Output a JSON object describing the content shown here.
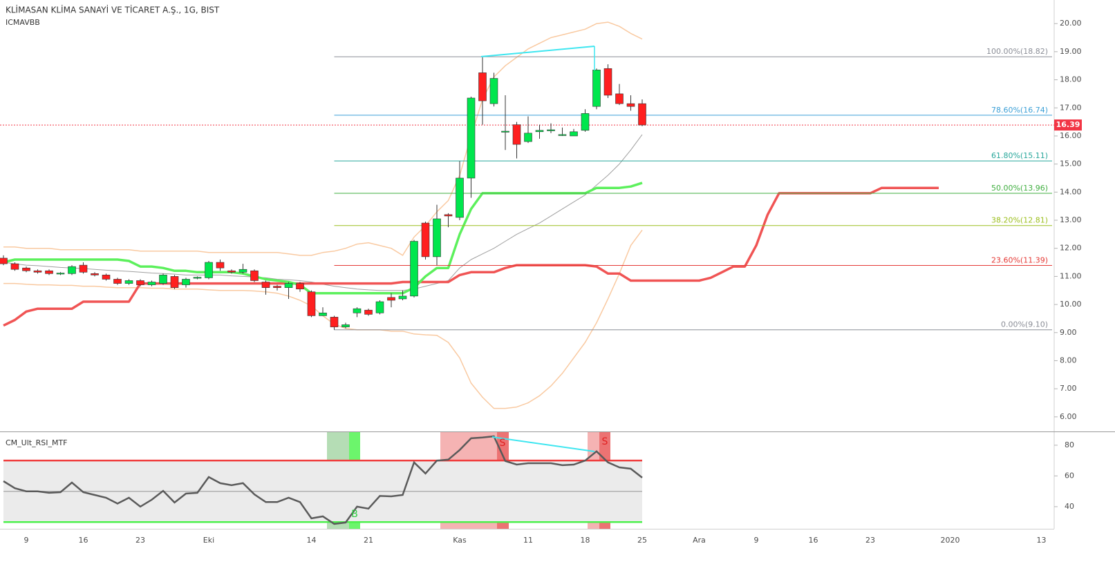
{
  "chart_data": {
    "type": "candlestick",
    "title": "KLİMASAN KLİMA SANAYİ VE TİCARET A.Ş., 1G, BIST",
    "subtitle": "ICMAVBB",
    "categories": [
      null,
      null,
      "9",
      null,
      null,
      null,
      null,
      "16",
      null,
      null,
      null,
      null,
      "23",
      null,
      null,
      null,
      null,
      null,
      "Eki",
      null,
      null,
      null,
      null,
      null,
      null,
      null,
      null,
      "14",
      null,
      null,
      null,
      null,
      "21",
      null,
      null,
      null,
      null,
      null,
      null,
      null,
      "Kas",
      null,
      null,
      null,
      null,
      null,
      "11",
      null,
      null,
      null,
      null,
      "18",
      null,
      null,
      null,
      null,
      "25",
      null,
      null,
      null,
      null,
      "Ara",
      null,
      null,
      null,
      null,
      "9",
      null,
      null,
      null,
      null,
      "16",
      null,
      null,
      null,
      null,
      "23",
      null,
      null,
      null,
      null,
      null,
      null,
      "2020",
      null,
      null,
      null,
      null,
      null,
      null,
      null,
      "13"
    ],
    "open": [
      11.65,
      11.45,
      11.3,
      11.2,
      11.2,
      11.1,
      11.1,
      11.4,
      11.1,
      11.05,
      10.9,
      10.75,
      10.85,
      10.7,
      10.75,
      11.0,
      10.7,
      10.95,
      10.95,
      11.5,
      11.2,
      11.15,
      11.2,
      10.8,
      10.65,
      10.6,
      10.75,
      10.45,
      9.6,
      9.55,
      9.2,
      9.7,
      9.8,
      9.7,
      10.25,
      10.2,
      10.3,
      12.9,
      11.7,
      13.2,
      13.1,
      14.5,
      18.25,
      17.15,
      16.15,
      16.4,
      15.8,
      16.15,
      16.2,
      16.05,
      16.0,
      16.2,
      17.05,
      18.4,
      17.5,
      17.15,
      17.15,
      null,
      null,
      null,
      null,
      null,
      null,
      null,
      null,
      null,
      null,
      null,
      null,
      null,
      null,
      null,
      null,
      null,
      null,
      null,
      null,
      null,
      null,
      null,
      null,
      null,
      null,
      null,
      null,
      null,
      null,
      null,
      null,
      null,
      null,
      null
    ],
    "high": [
      11.75,
      11.5,
      11.35,
      11.25,
      11.25,
      11.15,
      11.4,
      11.5,
      11.15,
      11.1,
      10.95,
      10.9,
      10.9,
      10.85,
      11.1,
      11.05,
      10.95,
      11.0,
      11.55,
      11.6,
      11.25,
      11.45,
      11.25,
      10.85,
      10.7,
      10.8,
      10.8,
      10.5,
      9.9,
      9.6,
      9.35,
      9.9,
      9.85,
      10.15,
      10.4,
      10.5,
      12.3,
      12.95,
      13.55,
      13.25,
      15.1,
      17.4,
      18.8,
      18.25,
      17.45,
      16.5,
      16.7,
      16.4,
      16.45,
      16.3,
      16.25,
      16.95,
      18.4,
      18.55,
      17.85,
      17.45,
      17.3,
      null,
      null,
      null,
      null,
      null,
      null,
      null,
      null,
      null,
      null,
      null,
      null,
      null,
      null,
      null,
      null,
      null,
      null,
      null,
      null,
      null,
      null,
      null,
      null,
      null,
      null,
      null,
      null,
      null,
      null,
      null,
      null,
      null,
      null,
      null
    ],
    "low": [
      11.4,
      11.2,
      11.15,
      11.1,
      11.05,
      11.05,
      11.05,
      11.1,
      11.0,
      10.85,
      10.7,
      10.7,
      10.65,
      10.65,
      10.7,
      10.55,
      10.6,
      10.9,
      10.9,
      11.2,
      11.1,
      11.1,
      10.8,
      10.35,
      10.5,
      10.2,
      10.45,
      9.55,
      9.6,
      9.1,
      9.15,
      9.55,
      9.6,
      9.65,
      9.9,
      10.15,
      10.25,
      11.6,
      11.4,
      12.75,
      13.0,
      13.8,
      16.4,
      17.05,
      15.5,
      15.2,
      15.75,
      15.9,
      16.1,
      16.0,
      16.0,
      16.15,
      16.95,
      17.35,
      17.1,
      16.9,
      16.35,
      null,
      null,
      null,
      null,
      null,
      null,
      null,
      null,
      null,
      null,
      null,
      null,
      null,
      null,
      null,
      null,
      null,
      null,
      null,
      null,
      null,
      null,
      null,
      null,
      null,
      null,
      null,
      null,
      null,
      null,
      null,
      null,
      null,
      null,
      null
    ],
    "close": [
      11.45,
      11.25,
      11.2,
      11.15,
      11.1,
      11.12,
      11.35,
      11.15,
      11.05,
      10.9,
      10.75,
      10.85,
      10.7,
      10.8,
      11.05,
      10.6,
      10.9,
      10.97,
      11.5,
      11.3,
      11.15,
      11.25,
      10.85,
      10.6,
      10.6,
      10.75,
      10.55,
      9.6,
      9.7,
      9.2,
      9.28,
      9.85,
      9.65,
      10.1,
      10.15,
      10.3,
      12.25,
      11.7,
      13.05,
      13.15,
      14.5,
      17.35,
      17.25,
      18.05,
      16.17,
      15.7,
      16.1,
      16.2,
      16.22,
      16.05,
      16.15,
      16.8,
      18.35,
      17.45,
      17.15,
      17.05,
      16.39,
      null,
      null,
      null,
      null,
      null,
      null,
      null,
      null,
      null,
      null,
      null,
      null,
      null,
      null,
      null,
      null,
      null,
      null,
      null,
      null,
      null,
      null,
      null,
      null,
      null,
      null,
      null,
      null,
      null,
      null,
      null,
      null,
      null,
      null,
      null
    ],
    "up_color": "#00e64d",
    "down_color": "#ff1f1f",
    "ylim": [
      5.48,
      20.84
    ],
    "yticks": [
      {
        "value": 6,
        "label": "6.00"
      },
      {
        "value": 7,
        "label": "7.00"
      },
      {
        "value": 8,
        "label": "8.00"
      },
      {
        "value": 9,
        "label": "9.00"
      },
      {
        "value": 10,
        "label": "10.00"
      },
      {
        "value": 11,
        "label": "11.00"
      },
      {
        "value": 12,
        "label": "12.00"
      },
      {
        "value": 13,
        "label": "13.00"
      },
      {
        "value": 14,
        "label": "14.00"
      },
      {
        "value": 15,
        "label": "15.00"
      },
      {
        "value": 16,
        "label": "16.00"
      },
      {
        "value": 17,
        "label": "17.00"
      },
      {
        "value": 18,
        "label": "18.00"
      },
      {
        "value": 19,
        "label": "19.00"
      },
      {
        "value": 20,
        "label": "20.00"
      }
    ],
    "overlays": [
      {
        "color": "#f9c9a0",
        "width": 1.5,
        "values": [
          12.05,
          12.05,
          12.0,
          12.0,
          12.0,
          11.95,
          11.95,
          11.95,
          11.95,
          11.95,
          11.95,
          11.95,
          11.9,
          11.9,
          11.9,
          11.9,
          11.9,
          11.9,
          11.85,
          11.85,
          11.85,
          11.85,
          11.85,
          11.85,
          11.85,
          11.8,
          11.75,
          11.75,
          11.85,
          11.9,
          12.0,
          12.15,
          12.2,
          12.1,
          12.0,
          11.75,
          12.4,
          12.8,
          13.3,
          13.7,
          14.6,
          16.0,
          17.3,
          18.1,
          18.5,
          18.8,
          19.1,
          19.3,
          19.5,
          19.6,
          19.7,
          19.8,
          20.0,
          20.05,
          19.9,
          19.65,
          19.45,
          null,
          null,
          null,
          null,
          null,
          null,
          null,
          null,
          null,
          null,
          null,
          null,
          null,
          null,
          null,
          null,
          null,
          null,
          null,
          null,
          null,
          null,
          null,
          null,
          null,
          null,
          null,
          null,
          null,
          null,
          null,
          null,
          null,
          null,
          null
        ]
      },
      {
        "color": "#f9c9a0",
        "width": 1.5,
        "values": [
          10.75,
          10.75,
          10.72,
          10.7,
          10.7,
          10.68,
          10.68,
          10.65,
          10.65,
          10.62,
          10.6,
          10.6,
          10.6,
          10.58,
          10.58,
          10.55,
          10.55,
          10.55,
          10.52,
          10.5,
          10.5,
          10.5,
          10.48,
          10.45,
          10.4,
          10.3,
          10.15,
          9.95,
          9.6,
          9.3,
          9.15,
          9.1,
          9.1,
          9.1,
          9.05,
          9.05,
          8.95,
          8.92,
          8.9,
          8.65,
          8.1,
          7.2,
          6.7,
          6.3,
          6.3,
          6.35,
          6.5,
          6.75,
          7.1,
          7.55,
          8.1,
          8.65,
          9.35,
          10.2,
          11.1,
          12.1,
          12.65,
          null,
          null,
          null,
          null,
          null,
          null,
          null,
          null,
          null,
          null,
          null,
          null,
          null,
          null,
          null,
          null,
          null,
          null,
          null,
          null,
          null,
          null,
          null,
          null,
          null,
          null,
          null,
          null,
          null,
          null,
          null,
          null,
          null,
          null,
          null
        ]
      },
      {
        "color": "#9e9e9e",
        "width": 1,
        "values": [
          11.5,
          11.45,
          11.4,
          11.38,
          11.35,
          11.32,
          11.3,
          11.28,
          11.25,
          11.22,
          11.2,
          11.18,
          11.15,
          11.12,
          11.1,
          11.08,
          11.05,
          11.05,
          11.05,
          11.05,
          11.02,
          11.0,
          10.98,
          10.95,
          10.9,
          10.88,
          10.85,
          10.8,
          10.72,
          10.65,
          10.6,
          10.55,
          10.52,
          10.5,
          10.5,
          10.5,
          10.55,
          10.65,
          10.75,
          10.85,
          11.3,
          11.6,
          11.8,
          12.0,
          12.25,
          12.5,
          12.7,
          12.9,
          13.15,
          13.4,
          13.65,
          13.9,
          14.25,
          14.6,
          15.0,
          15.5,
          16.05,
          null,
          null,
          null,
          null,
          null,
          null,
          null,
          null,
          null,
          null,
          null,
          null,
          null,
          null,
          null,
          null,
          null,
          null,
          null,
          null,
          null,
          null,
          null,
          null,
          null,
          null,
          null,
          null,
          null,
          null,
          null,
          null,
          null,
          null,
          null
        ]
      },
      {
        "color": "#f05454",
        "width": 3.5,
        "values": [
          9.25,
          9.45,
          9.75,
          9.85,
          9.85,
          9.85,
          9.85,
          10.1,
          10.1,
          10.1,
          10.1,
          10.1,
          10.75,
          10.75,
          10.75,
          10.75,
          10.75,
          10.75,
          10.75,
          10.75,
          10.75,
          10.75,
          10.75,
          10.75,
          10.75,
          10.75,
          10.75,
          10.75,
          10.75,
          10.75,
          10.75,
          10.75,
          10.75,
          10.75,
          10.75,
          10.8,
          10.8,
          10.8,
          10.8,
          10.8,
          11.05,
          11.15,
          11.15,
          11.15,
          11.3,
          11.4,
          11.4,
          11.4,
          11.4,
          11.4,
          11.4,
          11.4,
          11.35,
          11.1,
          11.1,
          10.85,
          10.85,
          10.85,
          10.85,
          10.85,
          10.85,
          10.85,
          10.95,
          11.15,
          11.35,
          11.35,
          12.1,
          13.2,
          13.96,
          13.96,
          13.96,
          13.96,
          13.96,
          13.96,
          13.96,
          13.96,
          13.96,
          14.15,
          14.15,
          14.15,
          14.15,
          14.15,
          14.15,
          null,
          null,
          null,
          null,
          null,
          null,
          null,
          null,
          null
        ]
      },
      {
        "color": "#5cf05c",
        "width": 3.5,
        "values": [
          11.5,
          11.6,
          11.6,
          11.6,
          11.6,
          11.6,
          11.6,
          11.6,
          11.6,
          11.6,
          11.6,
          11.55,
          11.35,
          11.35,
          11.3,
          11.2,
          11.2,
          11.15,
          11.15,
          11.15,
          11.15,
          11.1,
          11.0,
          10.9,
          10.85,
          10.8,
          10.7,
          10.4,
          10.4,
          10.4,
          10.4,
          10.4,
          10.4,
          10.4,
          10.4,
          10.4,
          10.6,
          11.0,
          11.3,
          11.3,
          12.5,
          13.4,
          13.96,
          13.96,
          13.96,
          13.96,
          13.96,
          13.96,
          13.96,
          13.96,
          13.96,
          13.96,
          14.15,
          14.15,
          14.15,
          14.2,
          14.33,
          null,
          null,
          null,
          null,
          null,
          null,
          null,
          null,
          null,
          null,
          null,
          null,
          null,
          null,
          null,
          null,
          null,
          null,
          null,
          null,
          null,
          null,
          null,
          null,
          null,
          null,
          null,
          null,
          null,
          null,
          null,
          null,
          null,
          null,
          null
        ]
      }
    ],
    "fib_levels": [
      {
        "label": "100.00%(18.82)",
        "value": 18.82,
        "color": "#8a8d96"
      },
      {
        "label": "78.60%(16.74)",
        "value": 16.74,
        "color": "#3a9fd6"
      },
      {
        "label": "61.80%(15.11)",
        "value": 15.11,
        "color": "#26a69a"
      },
      {
        "label": "50.00%(13.96)",
        "value": 13.96,
        "color": "#3fae3f"
      },
      {
        "label": "38.20%(12.81)",
        "value": 12.81,
        "color": "#9cbf1e"
      },
      {
        "label": "23.60%(11.39)",
        "value": 11.39,
        "color": "#e53935"
      },
      {
        "label": "0.00%(9.10)",
        "value": 9.1,
        "color": "#8a8d96"
      }
    ],
    "last_price": {
      "value": 16.39,
      "label": "16.39",
      "color": "#f23645"
    },
    "rsi": {
      "title": "CM_Ult_RSI_MTF",
      "color": "#5a5a5a",
      "values": [
        56.6,
        52,
        50,
        50,
        49,
        49.4,
        55.7,
        49.4,
        47.6,
        45.8,
        42,
        45.8,
        40,
        44.5,
        50.3,
        42.7,
        48.5,
        49,
        59.3,
        55.3,
        54,
        55.3,
        48,
        43,
        43,
        45.8,
        43,
        32.4,
        33.7,
        28.8,
        29.7,
        40,
        38.7,
        47,
        46.7,
        47.6,
        68.8,
        61.6,
        70,
        70.6,
        76.9,
        84.5,
        85,
        85.8,
        69.7,
        67.4,
        68.3,
        68.3,
        68.3,
        67,
        67.4,
        70,
        76,
        68.8,
        65.6,
        64.7,
        58.9,
        null,
        null,
        null,
        null,
        null,
        null,
        null,
        null,
        null,
        null,
        null,
        null,
        null,
        null,
        null,
        null,
        null,
        null,
        null,
        null,
        null,
        null,
        null,
        null,
        null,
        null,
        null,
        null,
        null,
        null,
        null,
        null,
        null,
        null,
        null
      ],
      "ylim": [
        25.6,
        88.5
      ],
      "yticks": [
        40,
        60,
        80
      ],
      "levels": [
        {
          "value": 70,
          "color": "#f03c3c"
        },
        {
          "value": 50,
          "color": "#b0b0b0"
        },
        {
          "value": 30,
          "color": "#4cf04c"
        }
      ],
      "signals": [
        "B",
        "S",
        "S"
      ]
    }
  }
}
